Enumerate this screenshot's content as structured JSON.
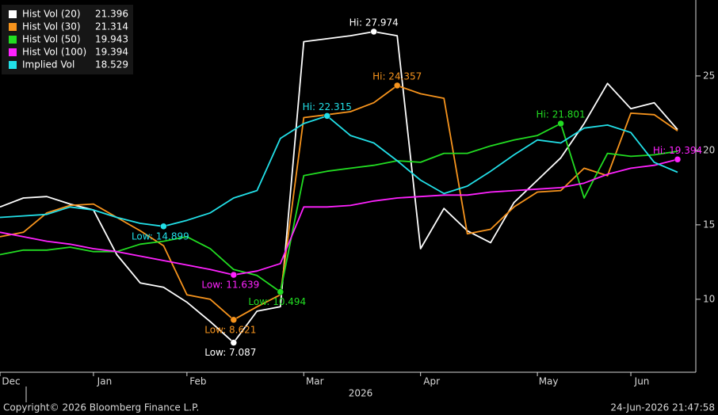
{
  "chart_data": {
    "type": "line",
    "categories": [
      "Dec",
      null,
      null,
      null,
      "Jan",
      null,
      null,
      null,
      "Feb",
      null,
      null,
      null,
      null,
      "Mar",
      null,
      null,
      null,
      null,
      "Apr",
      null,
      null,
      null,
      null,
      "May",
      null,
      null,
      null,
      "Jun",
      null,
      null
    ],
    "year_label": "2026",
    "ylim": [
      5.1,
      30.1
    ],
    "yticks": [
      10,
      15,
      20,
      25
    ],
    "grid": false,
    "legend": "top-left",
    "series": [
      {
        "name": "Hist Vol (20)",
        "color": "#ffffff",
        "values": [
          16.2,
          16.8,
          16.9,
          16.4,
          16.0,
          13.0,
          11.1,
          10.8,
          9.8,
          8.5,
          7.087,
          9.2,
          9.5,
          27.3,
          27.5,
          27.7,
          27.974,
          27.7,
          13.4,
          16.1,
          14.6,
          13.8,
          16.5,
          18.0,
          19.5,
          21.8,
          24.5,
          22.8,
          23.2,
          21.396
        ],
        "annotations": [
          {
            "index": 10,
            "label": "Low: 7.087"
          },
          {
            "index": 16,
            "label": "Hi: 27.974"
          }
        ]
      },
      {
        "name": "Hist Vol (30)",
        "color": "#f7941d",
        "values": [
          14.2,
          14.5,
          15.8,
          16.3,
          16.4,
          15.5,
          14.6,
          13.6,
          10.3,
          10.0,
          8.621,
          9.5,
          10.3,
          22.2,
          22.4,
          22.6,
          23.2,
          24.357,
          23.8,
          23.5,
          14.4,
          14.7,
          16.2,
          17.2,
          17.3,
          18.8,
          18.3,
          22.5,
          22.4,
          21.314
        ],
        "annotations": [
          {
            "index": 10,
            "label": "Low: 8.621"
          },
          {
            "index": 17,
            "label": "Hi: 24.357"
          }
        ]
      },
      {
        "name": "Hist Vol (50)",
        "color": "#22dd22",
        "values": [
          13.0,
          13.3,
          13.3,
          13.5,
          13.2,
          13.2,
          13.7,
          13.9,
          14.2,
          13.4,
          12.0,
          11.6,
          10.494,
          18.3,
          18.6,
          18.8,
          19.0,
          19.3,
          19.2,
          19.8,
          19.8,
          20.3,
          20.7,
          21.0,
          21.801,
          16.8,
          19.8,
          19.6,
          19.7,
          19.943
        ],
        "annotations": [
          {
            "index": 12,
            "label": "Low: 10.494"
          },
          {
            "index": 24,
            "label": "Hi: 21.801"
          }
        ]
      },
      {
        "name": "Hist Vol (100)",
        "color": "#ff22ff",
        "values": [
          14.5,
          14.2,
          13.9,
          13.7,
          13.4,
          13.2,
          12.9,
          12.6,
          12.3,
          12.0,
          11.639,
          11.9,
          12.4,
          16.2,
          16.2,
          16.3,
          16.6,
          16.8,
          16.9,
          17.0,
          17.0,
          17.2,
          17.3,
          17.4,
          17.5,
          17.8,
          18.4,
          18.8,
          19.0,
          19.394
        ],
        "annotations": [
          {
            "index": 10,
            "label": "Low: 11.639"
          },
          {
            "index": 29,
            "label": "Hi: 19.394"
          }
        ]
      },
      {
        "name": "Implied Vol",
        "color": "#22e0e8",
        "values": [
          15.5,
          15.6,
          15.7,
          16.2,
          16.0,
          15.5,
          15.1,
          14.899,
          15.3,
          15.8,
          16.8,
          17.3,
          20.8,
          21.8,
          22.315,
          21.0,
          20.5,
          19.3,
          18.0,
          17.1,
          17.6,
          18.6,
          19.7,
          20.7,
          20.5,
          21.5,
          21.7,
          21.2,
          19.2,
          18.529
        ],
        "annotations": [
          {
            "index": 7,
            "label": "Low: 14.899"
          },
          {
            "index": 14,
            "label": "Hi: 22.315"
          }
        ]
      }
    ]
  },
  "footer": {
    "copyright": "Copyright© 2026 Bloomberg Finance L.P.",
    "timestamp": "24-Jun-2026 21:47:58"
  }
}
